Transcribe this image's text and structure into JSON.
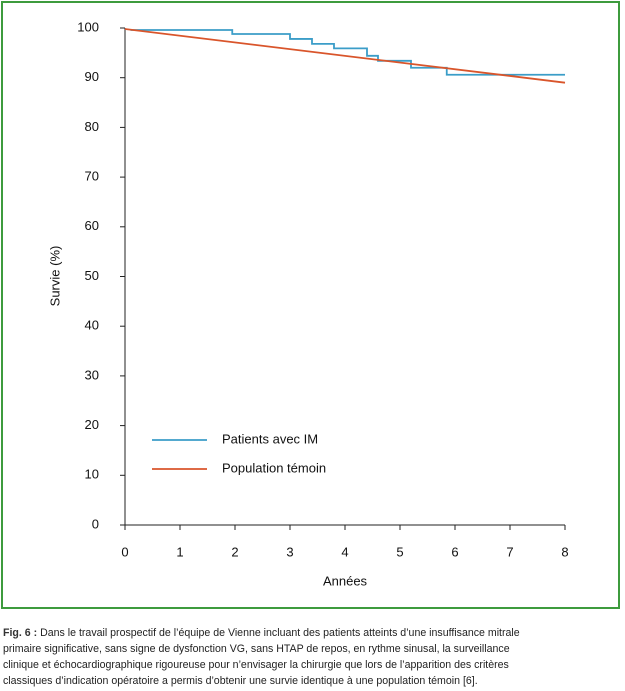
{
  "chart_data": {
    "type": "line",
    "xlabel": "Années",
    "ylabel": "Survie (%)",
    "xlim": [
      0,
      8
    ],
    "xticks": [
      0,
      1,
      2,
      3,
      4,
      5,
      6,
      7,
      8
    ],
    "ylim": [
      0,
      100
    ],
    "yticks": [
      0,
      10,
      20,
      30,
      40,
      50,
      60,
      70,
      80,
      90,
      100
    ],
    "legend": "lower left",
    "series": [
      {
        "name": "Patients avec IM",
        "color": "#3b9dc8",
        "x": [
          0.1,
          1.95,
          1.95,
          3.0,
          3.0,
          3.4,
          3.4,
          3.8,
          3.8,
          4.4,
          4.4,
          4.6,
          4.6,
          5.2,
          5.2,
          5.85,
          5.85,
          8.0
        ],
        "values": [
          99.6,
          99.6,
          98.8,
          98.8,
          97.8,
          97.8,
          96.8,
          96.8,
          95.9,
          95.9,
          94.4,
          94.4,
          93.4,
          93.4,
          92.0,
          92.0,
          90.6,
          90.6
        ]
      },
      {
        "name": "Population témoin",
        "color": "#d9552b",
        "x": [
          0,
          8
        ],
        "values": [
          99.8,
          89.0
        ]
      }
    ]
  },
  "caption": {
    "label": "Fig. 6 :",
    "lines": [
      "Dans le travail prospectif de l’équipe de Vienne incluant des patients atteints d’une insuffisance mitrale",
      "primaire significative, sans signe de dysfonction VG, sans HTAP de repos, en rythme sinusal, la surveillance",
      "clinique et échocardiographique rigoureuse pour n’envisager la chirurgie que lors de l’apparition des critères",
      "classiques d’indication opératoire a permis d’obtenir une survie identique à une population témoin [6]."
    ]
  }
}
